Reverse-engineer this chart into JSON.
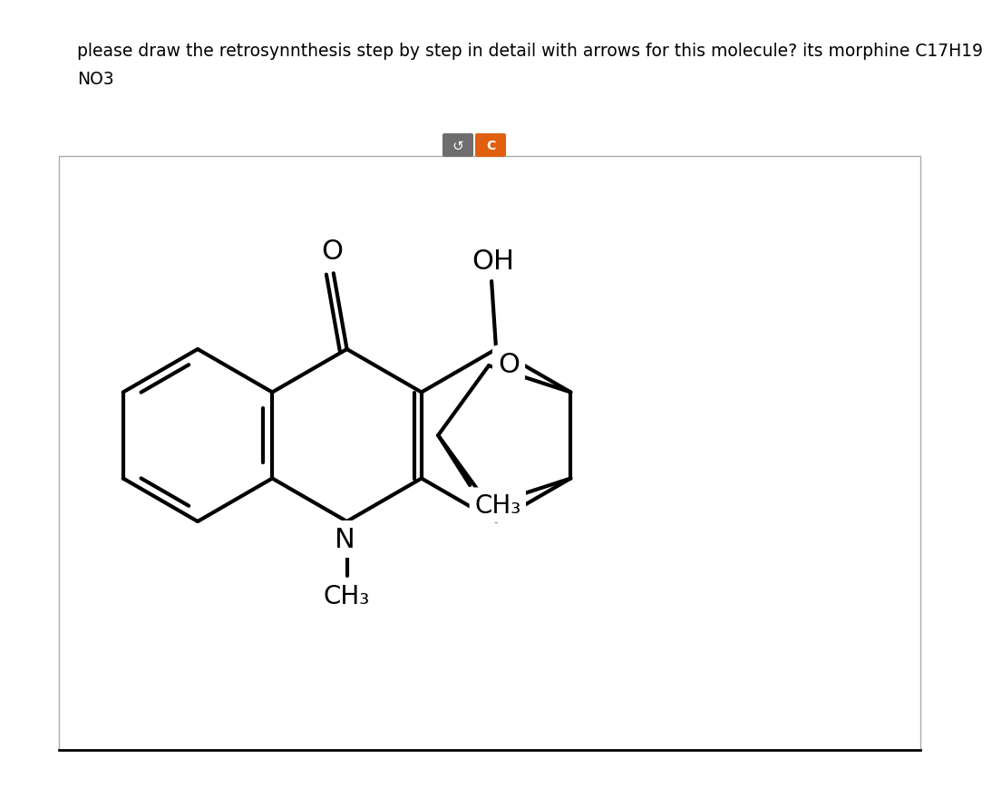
{
  "title_line1": "please draw the retrosynnthesis step by step in detail with arrows for this molecule? its morphine C17H19",
  "title_line2": "NO3",
  "btn1_color": "#6e6e6e",
  "btn2_color": "#e06010",
  "box_edge_color": "#aaaaaa",
  "lw": 3.0,
  "lw_inner": 2.8,
  "font_size": 20,
  "font_size_title": 13.5,
  "label_O_carbonyl": "O",
  "label_OH": "OH",
  "label_N": "N",
  "label_CH3_N": "CH₃",
  "label_O_ring": "O",
  "label_CH3_ring": "CH₃"
}
